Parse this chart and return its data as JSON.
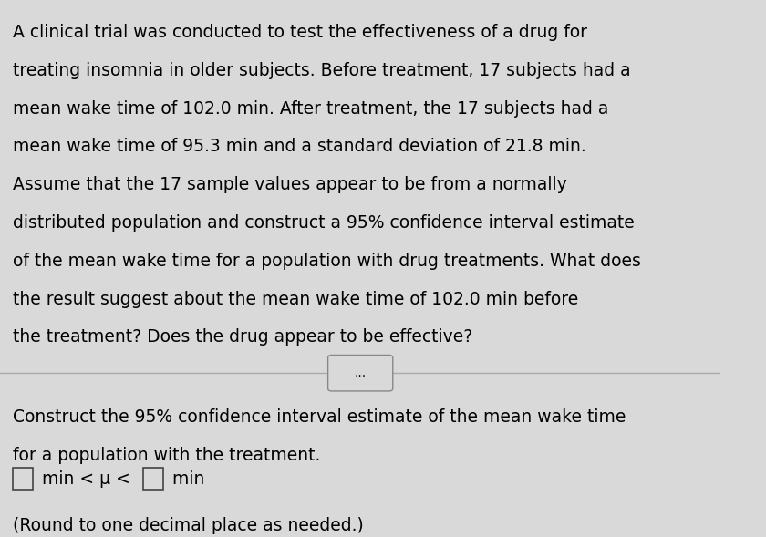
{
  "bg_color": "#d9d9d9",
  "text_color": "#000000",
  "divider_button_text": "...",
  "bottom_instruction_line1": "Construct the 95% confidence interval estimate of the mean wake time",
  "bottom_instruction_line2": "for a population with the treatment.",
  "round_note": "(Round to one decimal place as needed.)",
  "font_size_main": 13.5,
  "font_size_bottom": 13.5,
  "font_size_formula": 13.5,
  "font_size_note": 13.5,
  "lines_top": [
    "A clinical trial was conducted to test the effectiveness of a drug for",
    "treating insomnia in older subjects. Before treatment, 17 subjects had a",
    "mean wake time of 102.0 min. After treatment, the 17 subjects had a",
    "mean wake time of 95.3 min and a standard deviation of 21.8 min.",
    "Assume that the 17 sample values appear to be from a normally",
    "distributed population and construct a 95% confidence interval estimate",
    "of the mean wake time for a population with drug treatments. What does",
    "the result suggest about the mean wake time of 102.0 min before",
    "the treatment? Does the drug appear to be effective?"
  ]
}
